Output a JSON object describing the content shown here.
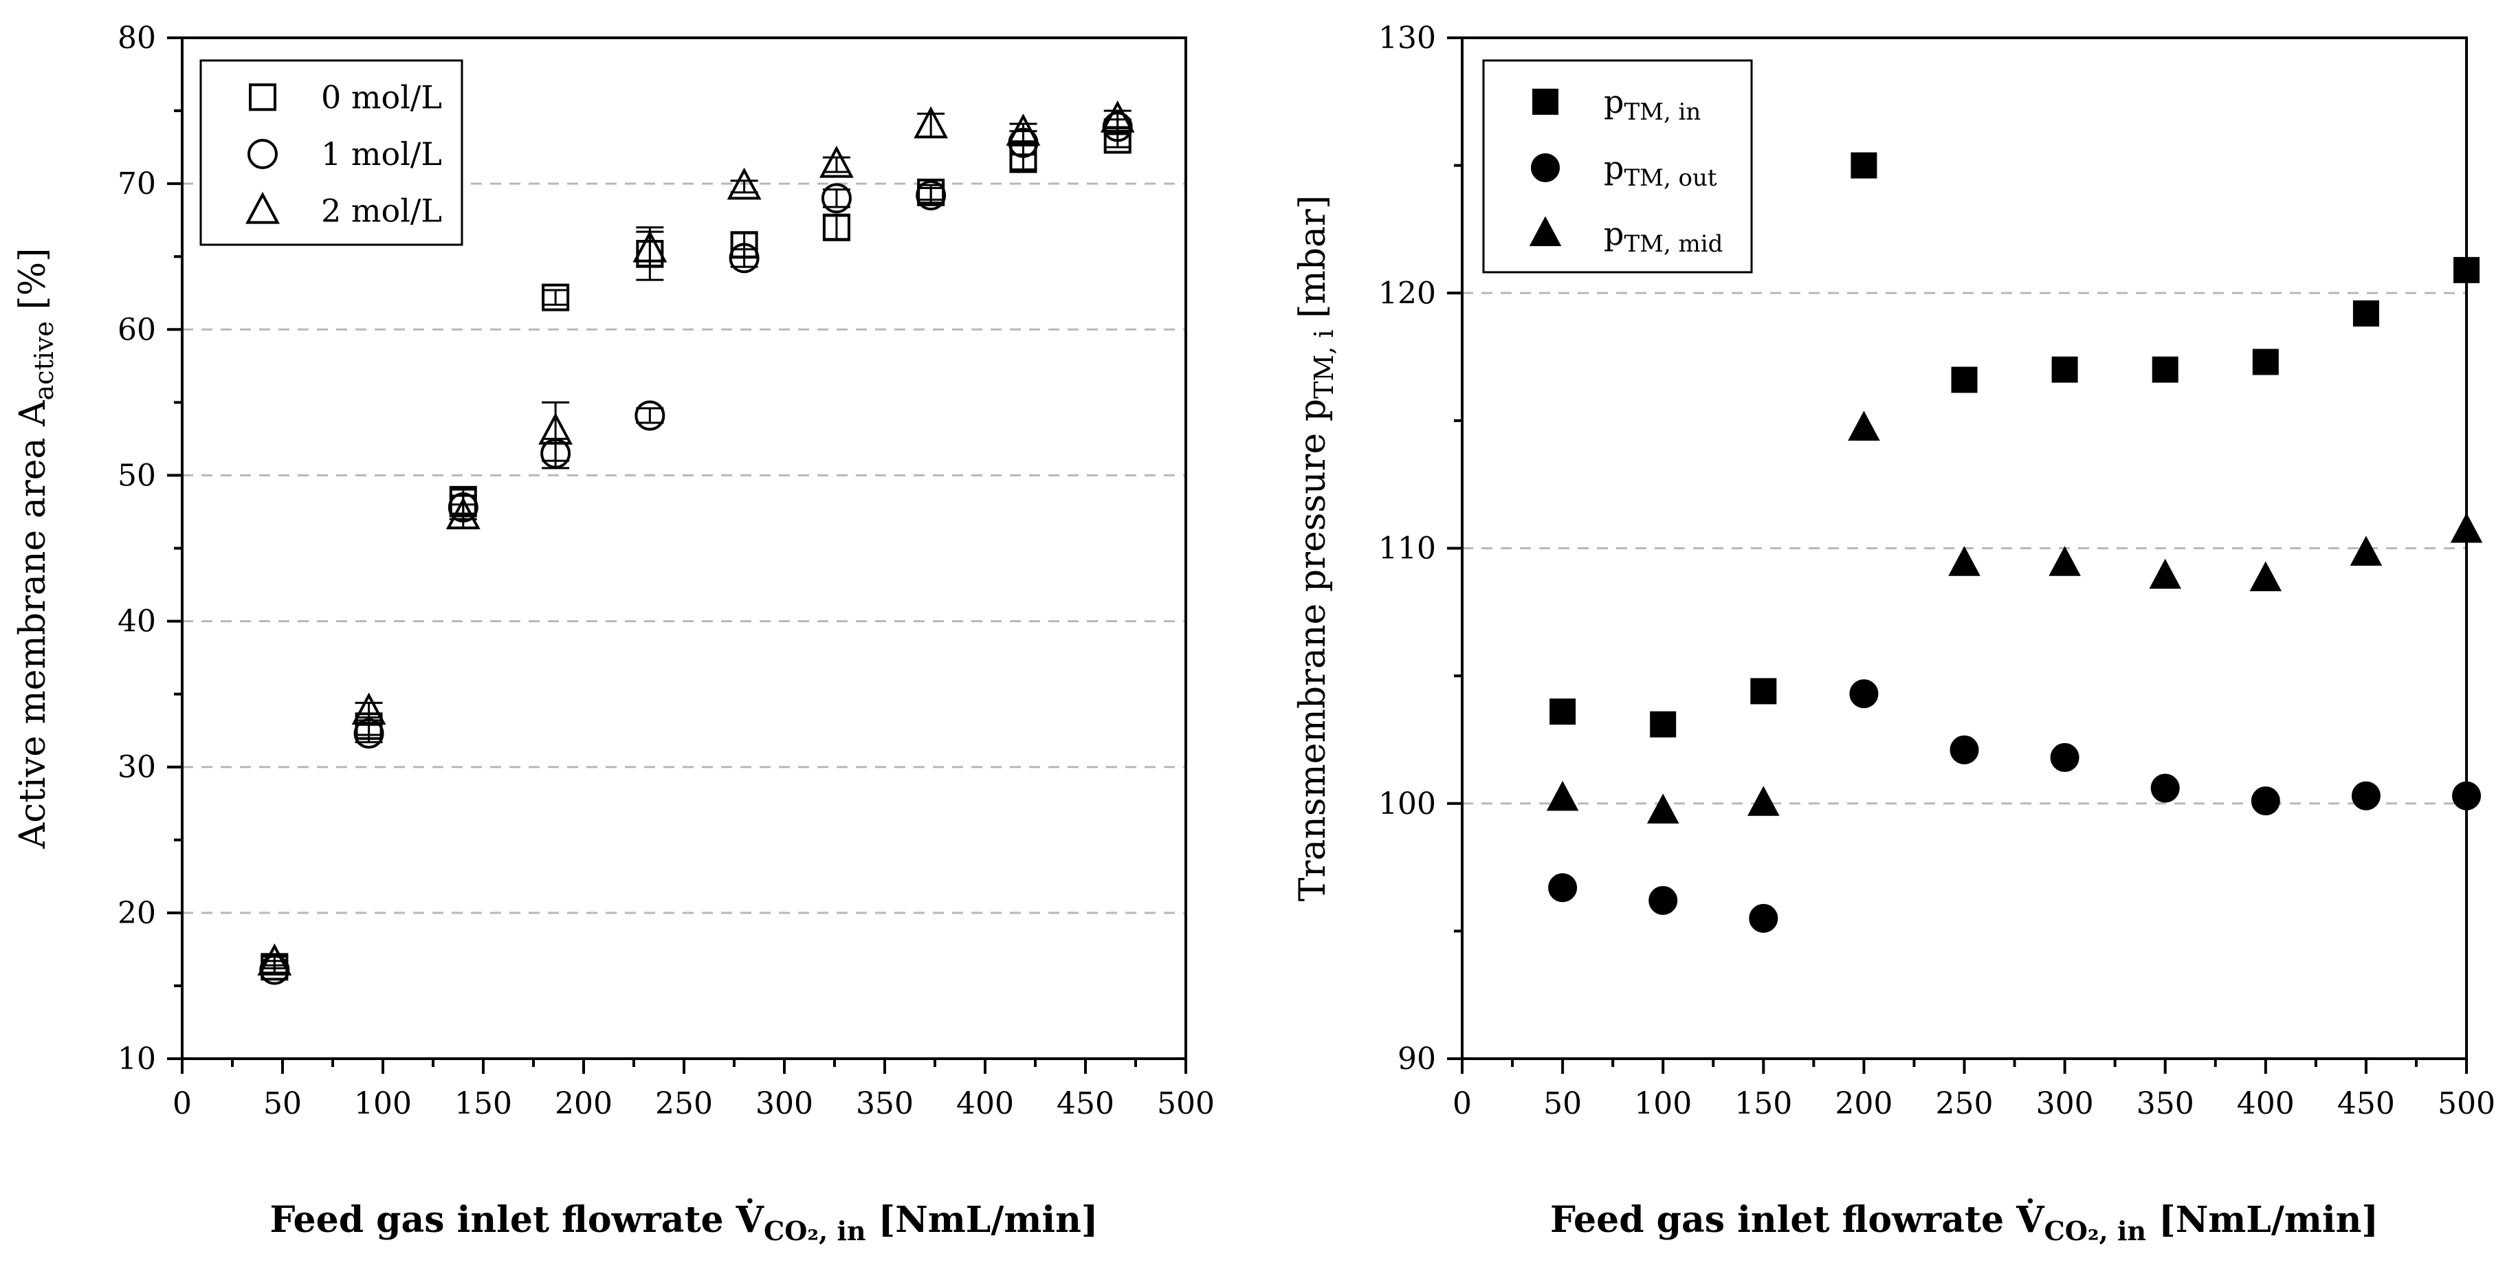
{
  "chart_data": [
    {
      "type": "scatter",
      "title": "",
      "xlabel": "Feed gas inlet flowrate V̇CO₂, in [NmL/min]",
      "xlabel_parts": {
        "main": "Feed gas inlet flowrate V̇",
        "sub": "CO₂, in",
        "unit": " [NmL/min]"
      },
      "ylabel": "Active membrane area Aactive [%]",
      "ylabel_parts": {
        "main": "Active membrane area A",
        "sub": "active",
        "unit": " [%]"
      },
      "xlim": [
        0,
        500
      ],
      "ylim": [
        10,
        80
      ],
      "xticks": [
        "0",
        "50",
        "100",
        "150",
        "200",
        "250",
        "300",
        "350",
        "400",
        "450",
        "500"
      ],
      "yticks": [
        "10",
        "20",
        "30",
        "40",
        "50",
        "60",
        "70",
        "80"
      ],
      "grid": "horizontal dashed",
      "legend_position": "top-left",
      "series": [
        {
          "name": "0 mol/L",
          "marker": "square-open",
          "x": [
            46,
            93,
            140,
            186,
            233,
            280,
            326,
            373,
            419,
            466
          ],
          "y": [
            16.3,
            32.8,
            48.2,
            62.2,
            65.2,
            65.8,
            67.0,
            69.4,
            71.8,
            73.0
          ],
          "err": [
            0.4,
            0.6,
            1.0,
            0.5,
            1.8,
            0.8,
            0.8,
            0.5,
            1.0,
            0.5
          ]
        },
        {
          "name": "1 mol/L",
          "marker": "circle-open",
          "x": [
            46,
            93,
            140,
            186,
            233,
            280,
            326,
            373,
            419,
            466
          ],
          "y": [
            16.1,
            32.3,
            47.8,
            51.5,
            54.1,
            64.9,
            69.0,
            69.2,
            72.8,
            73.9
          ],
          "err": [
            0.3,
            0.6,
            0.8,
            1.0,
            0.5,
            0.6,
            0.6,
            0.5,
            0.8,
            0.5
          ]
        },
        {
          "name": "2 mol/L",
          "marker": "triangle-open",
          "x": [
            46,
            93,
            140,
            186,
            233,
            280,
            326,
            373,
            419,
            466
          ],
          "y": [
            16.6,
            33.8,
            47.2,
            53.0,
            65.5,
            69.8,
            71.3,
            74.0,
            73.5,
            74.4
          ],
          "err": [
            0.4,
            0.6,
            0.8,
            2.0,
            1.2,
            0.4,
            0.5,
            0.8,
            0.6,
            0.6
          ]
        }
      ]
    },
    {
      "type": "scatter",
      "title": "",
      "xlabel": "Feed gas inlet flowrate V̇CO₂, in [NmL/min]",
      "xlabel_parts": {
        "main": "Feed gas inlet flowrate V̇",
        "sub": "CO₂, in",
        "unit": " [NmL/min]"
      },
      "ylabel": "Transmembrane pressure pTM, i [mbar]",
      "ylabel_parts": {
        "main": "Transmembrane pressure p",
        "sub": "TM, i",
        "unit": " [mbar]"
      },
      "xlim": [
        0,
        500
      ],
      "ylim": [
        90,
        130
      ],
      "xticks": [
        "0",
        "50",
        "100",
        "150",
        "200",
        "250",
        "300",
        "350",
        "400",
        "450",
        "500"
      ],
      "yticks": [
        "90",
        "100",
        "110",
        "120",
        "130"
      ],
      "grid": "horizontal dashed",
      "legend_position": "top-left",
      "series": [
        {
          "name": "pTM, in",
          "name_main": "p",
          "name_sub": "TM, in",
          "marker": "square-filled",
          "x": [
            50,
            100,
            150,
            200,
            250,
            300,
            350,
            400,
            450,
            500
          ],
          "y": [
            103.6,
            103.1,
            104.4,
            125.0,
            116.6,
            117.0,
            117.0,
            117.3,
            119.2,
            120.9
          ]
        },
        {
          "name": "pTM, out",
          "name_main": "p",
          "name_sub": "TM, out",
          "marker": "circle-filled",
          "x": [
            50,
            100,
            150,
            200,
            250,
            300,
            350,
            400,
            450,
            500
          ],
          "y": [
            96.7,
            96.2,
            95.5,
            104.3,
            102.1,
            101.8,
            100.6,
            100.1,
            100.3,
            100.3
          ]
        },
        {
          "name": "pTM, mid",
          "name_main": "p",
          "name_sub": "TM, mid",
          "marker": "triangle-filled",
          "x": [
            50,
            100,
            150,
            200,
            250,
            300,
            350,
            400,
            450,
            500
          ],
          "y": [
            100.2,
            99.7,
            100.0,
            114.7,
            109.4,
            109.4,
            108.9,
            108.8,
            109.8,
            110.7
          ]
        }
      ]
    }
  ]
}
